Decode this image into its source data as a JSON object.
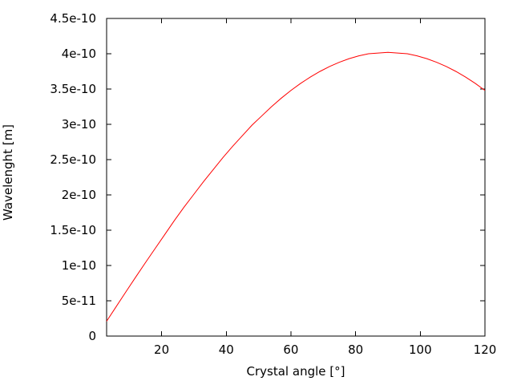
{
  "figure": {
    "background_color": "#ffffff",
    "border_color": "#000000",
    "text_color": "#000000",
    "x_ticks": [
      {
        "value": 20,
        "label": "20"
      },
      {
        "value": 40,
        "label": "40"
      },
      {
        "value": 60,
        "label": "60"
      },
      {
        "value": 80,
        "label": "80"
      },
      {
        "value": 100,
        "label": "100"
      },
      {
        "value": 120,
        "label": "120"
      }
    ],
    "y_ticks": [
      {
        "value": 0,
        "label": "0"
      },
      {
        "value": 5e-11,
        "label": "5e-11"
      },
      {
        "value": 1e-10,
        "label": "1e-10"
      },
      {
        "value": 1.5e-10,
        "label": "1.5e-10"
      },
      {
        "value": 2e-10,
        "label": "2e-10"
      },
      {
        "value": 2.5e-10,
        "label": "2.5e-10"
      },
      {
        "value": 3e-10,
        "label": "3e-10"
      },
      {
        "value": 3.5e-10,
        "label": "3.5e-10"
      },
      {
        "value": 4e-10,
        "label": "4e-10"
      },
      {
        "value": 4.5e-10,
        "label": "4.5e-10"
      }
    ]
  },
  "chart_data": {
    "type": "line",
    "title": "",
    "xlabel": "Crystal angle [°]",
    "ylabel": "Wavelenght [m]",
    "xlim": [
      3,
      120
    ],
    "ylim": [
      0,
      4.5e-10
    ],
    "grid": false,
    "legend": "none",
    "series": [
      {
        "name": "wavelength-curve",
        "color": "#ff0000",
        "x": [
          3,
          6,
          9,
          12,
          15,
          18,
          21,
          24,
          27,
          30,
          33,
          36,
          39,
          42,
          45,
          48,
          51,
          54,
          57,
          60,
          63,
          66,
          69,
          72,
          75,
          78,
          81,
          84,
          87,
          90,
          93,
          96,
          99,
          102,
          105,
          108,
          111,
          114,
          117,
          120
        ],
        "y": [
          2.1e-11,
          4.2e-11,
          6.29e-11,
          8.36e-11,
          1.04e-10,
          1.24e-10,
          1.44e-10,
          1.64e-10,
          1.83e-10,
          2.01e-10,
          2.19e-10,
          2.36e-10,
          2.53e-10,
          2.69e-10,
          2.84e-10,
          2.99e-10,
          3.12e-10,
          3.25e-10,
          3.37e-10,
          3.48e-10,
          3.58e-10,
          3.67e-10,
          3.75e-10,
          3.82e-10,
          3.88e-10,
          3.93e-10,
          3.97e-10,
          4e-10,
          4.01e-10,
          4.02e-10,
          4.01e-10,
          4e-10,
          3.97e-10,
          3.93e-10,
          3.88e-10,
          3.82e-10,
          3.75e-10,
          3.67e-10,
          3.58e-10,
          3.48e-10
        ]
      }
    ]
  }
}
